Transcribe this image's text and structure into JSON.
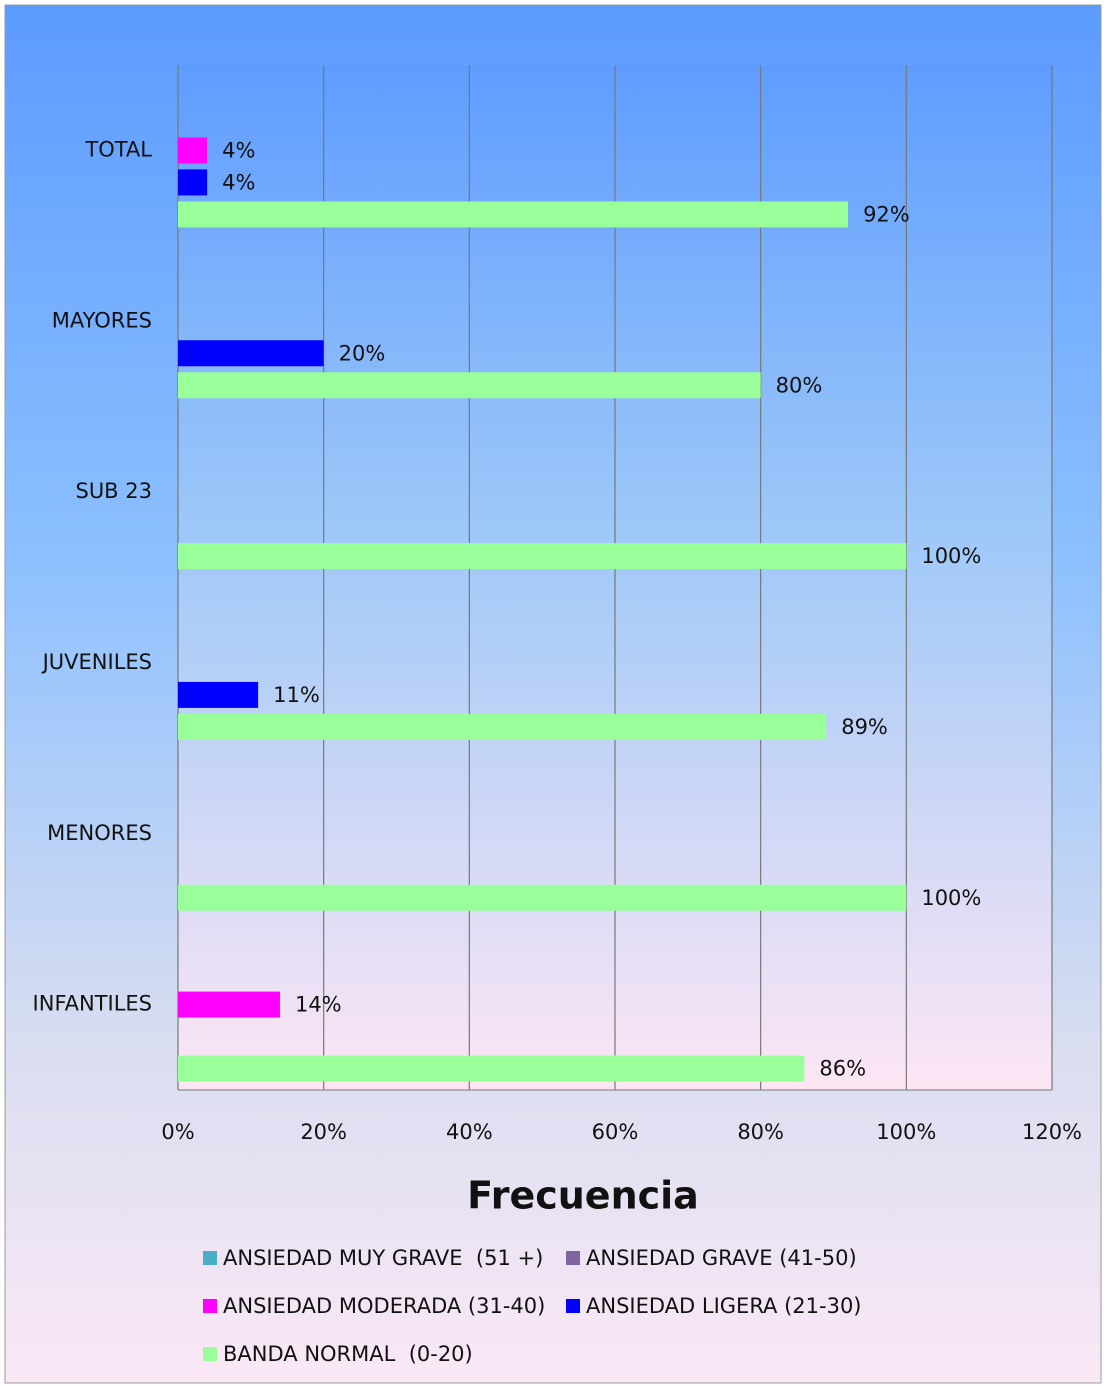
{
  "chart_data": {
    "type": "hbar",
    "x_label": "Frecuencia",
    "categories": [
      "TOTAL",
      "MAYORES",
      "SUB 23",
      "JUVENILES",
      "MENORES",
      "INFANTILES"
    ],
    "series": [
      {
        "name": "ANSIEDAD MUY GRAVE  (51 +)",
        "color": "#4bacc6",
        "values": [
          null,
          null,
          null,
          null,
          null,
          null
        ],
        "value_labels": [
          null,
          null,
          null,
          null,
          null,
          null
        ]
      },
      {
        "name": "ANSIEDAD GRAVE (41-50)",
        "color": "#8064a2",
        "values": [
          null,
          null,
          null,
          null,
          null,
          null
        ],
        "value_labels": [
          null,
          null,
          null,
          null,
          null,
          null
        ]
      },
      {
        "name": "ANSIEDAD MODERADA (31-40)",
        "color": "#ff00ff",
        "values": [
          4,
          null,
          null,
          null,
          null,
          14
        ],
        "value_labels": [
          "4%",
          null,
          null,
          null,
          null,
          "14%"
        ]
      },
      {
        "name": "ANSIEDAD LIGERA (21-30)",
        "color": "#0000ff",
        "values": [
          4,
          20,
          null,
          11,
          null,
          null
        ],
        "value_labels": [
          "4%",
          "20%",
          null,
          "11%",
          null,
          null
        ]
      },
      {
        "name": "BANDA NORMAL  (0-20)",
        "color": "#99ff99",
        "values": [
          92,
          80,
          100,
          89,
          100,
          86
        ],
        "value_labels": [
          "92%",
          "80%",
          "100%",
          "89%",
          "100%",
          "86%"
        ]
      }
    ],
    "xlim": [
      0,
      120
    ],
    "xticks": [
      {
        "value": 0,
        "label": "0%"
      },
      {
        "value": 20,
        "label": "20%"
      },
      {
        "value": 40,
        "label": "40%"
      },
      {
        "value": 60,
        "label": "60%"
      },
      {
        "value": 80,
        "label": "80%"
      },
      {
        "value": 100,
        "label": "100%"
      },
      {
        "value": 120,
        "label": "120%"
      }
    ],
    "grid": true
  }
}
